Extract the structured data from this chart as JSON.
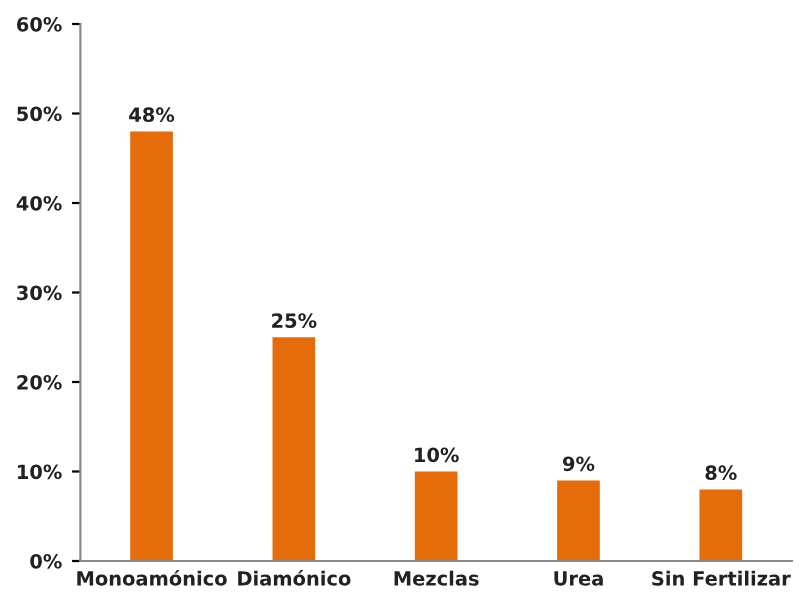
{
  "chart_data": {
    "type": "bar",
    "categories": [
      "Monoamónico",
      "Diamónico",
      "Mezclas",
      "Urea",
      "Sin Fertilizar"
    ],
    "values": [
      48,
      25,
      10,
      9,
      8
    ],
    "color": "#e46c0a",
    "value_labels": [
      "48%",
      "25%",
      "10%",
      "9%",
      "8%"
    ],
    "ylim": [
      0,
      60
    ],
    "yticks": [
      {
        "value": 0,
        "label": "0%"
      },
      {
        "value": 10,
        "label": "10%"
      },
      {
        "value": 20,
        "label": "20%"
      },
      {
        "value": 30,
        "label": "30%"
      },
      {
        "value": 40,
        "label": "40%"
      },
      {
        "value": 50,
        "label": "50%"
      },
      {
        "value": 60,
        "label": "60%"
      }
    ],
    "grid": false,
    "legend": false
  }
}
